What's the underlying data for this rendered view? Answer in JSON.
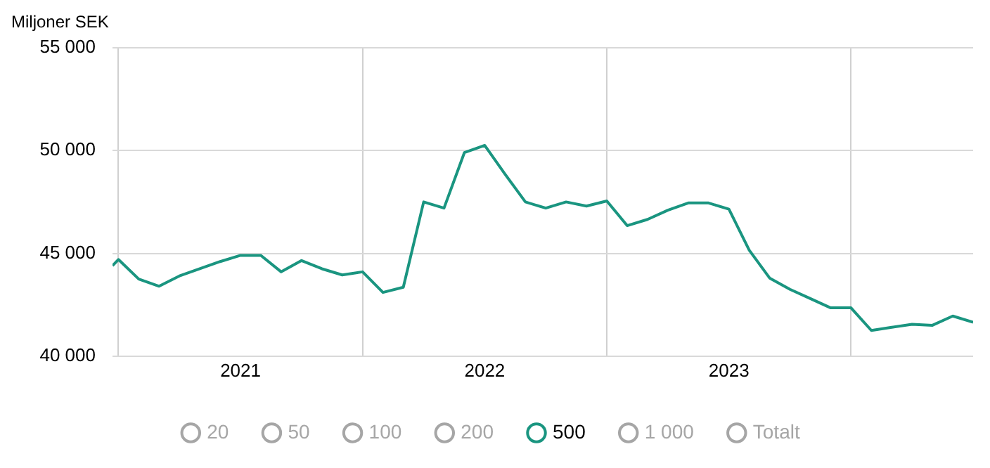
{
  "chart_data": {
    "type": "line",
    "ylabel": "Miljoner SEK",
    "x": [
      "2020-12-23",
      "2021-01",
      "2021-02",
      "2021-03",
      "2021-04",
      "2021-05",
      "2021-06",
      "2021-07",
      "2021-08",
      "2021-09",
      "2021-10",
      "2021-11",
      "2021-12",
      "2022-01",
      "2022-02",
      "2022-03",
      "2022-04",
      "2022-05",
      "2022-06",
      "2022-07",
      "2022-08",
      "2022-09",
      "2022-10",
      "2022-11",
      "2022-12",
      "2023-01",
      "2023-02",
      "2023-03",
      "2023-04",
      "2023-05",
      "2023-06",
      "2023-07",
      "2023-08",
      "2023-09",
      "2023-10",
      "2023-11",
      "2023-12",
      "2024-01",
      "2024-02",
      "2024-03",
      "2024-04",
      "2024-05",
      "2024-06",
      "2024-07"
    ],
    "series": [
      {
        "name": "20",
        "color": "#a6a6a6",
        "values": [
          null,
          null,
          null,
          null,
          null,
          null,
          null,
          null,
          null,
          null,
          null,
          null,
          null,
          null,
          null,
          null,
          null,
          null,
          null,
          null,
          null,
          null,
          null,
          null,
          null,
          null,
          null,
          null,
          null,
          null,
          null,
          null,
          null,
          null,
          null,
          null,
          null,
          null,
          null,
          null,
          null,
          null,
          null,
          null
        ]
      },
      {
        "name": "50",
        "color": "#a6a6a6",
        "values": [
          null,
          null,
          null,
          null,
          null,
          null,
          null,
          null,
          null,
          null,
          null,
          null,
          null,
          null,
          null,
          null,
          null,
          null,
          null,
          null,
          null,
          null,
          null,
          null,
          null,
          null,
          null,
          null,
          null,
          null,
          null,
          null,
          null,
          null,
          null,
          null,
          null,
          null,
          null,
          null,
          null,
          null,
          null,
          null
        ]
      },
      {
        "name": "100",
        "color": "#a6a6a6",
        "values": [
          null,
          null,
          null,
          null,
          null,
          null,
          null,
          null,
          null,
          null,
          null,
          null,
          null,
          null,
          null,
          null,
          null,
          null,
          null,
          null,
          null,
          null,
          null,
          null,
          null,
          null,
          null,
          null,
          null,
          null,
          null,
          null,
          null,
          null,
          null,
          null,
          null,
          null,
          null,
          null,
          null,
          null,
          null,
          null
        ]
      },
      {
        "name": "200",
        "color": "#a6a6a6",
        "values": [
          null,
          null,
          null,
          null,
          null,
          null,
          null,
          null,
          null,
          null,
          null,
          null,
          null,
          null,
          null,
          null,
          null,
          null,
          null,
          null,
          null,
          null,
          null,
          null,
          null,
          null,
          null,
          null,
          null,
          null,
          null,
          null,
          null,
          null,
          null,
          null,
          null,
          null,
          null,
          null,
          null,
          null,
          null,
          null
        ]
      },
      {
        "name": "500",
        "color": "#1a9580",
        "values": [
          44400,
          44700,
          43750,
          43400,
          43900,
          44250,
          44600,
          44900,
          44900,
          44100,
          44650,
          44250,
          43950,
          44100,
          43100,
          43350,
          47500,
          47200,
          49900,
          50250,
          48850,
          47500,
          47200,
          47500,
          47300,
          47550,
          46350,
          46650,
          47100,
          47450,
          47450,
          47150,
          45150,
          43800,
          43250,
          42800,
          42350,
          42350,
          41250,
          41400,
          41550,
          41500,
          41950,
          41650
        ]
      },
      {
        "name": "1 000",
        "color": "#a6a6a6",
        "values": [
          null,
          null,
          null,
          null,
          null,
          null,
          null,
          null,
          null,
          null,
          null,
          null,
          null,
          null,
          null,
          null,
          null,
          null,
          null,
          null,
          null,
          null,
          null,
          null,
          null,
          null,
          null,
          null,
          null,
          null,
          null,
          null,
          null,
          null,
          null,
          null,
          null,
          null,
          null,
          null,
          null,
          null,
          null,
          null
        ]
      },
      {
        "name": "Totalt",
        "color": "#a6a6a6",
        "values": [
          null,
          null,
          null,
          null,
          null,
          null,
          null,
          null,
          null,
          null,
          null,
          null,
          null,
          null,
          null,
          null,
          null,
          null,
          null,
          null,
          null,
          null,
          null,
          null,
          null,
          null,
          null,
          null,
          null,
          null,
          null,
          null,
          null,
          null,
          null,
          null,
          null,
          null,
          null,
          null,
          null,
          null,
          null,
          null
        ]
      }
    ],
    "xlim": [
      "2020-12-23",
      "2024-07"
    ],
    "xticks": [
      {
        "value": "2021-01",
        "label": null
      },
      {
        "value": "2021-07",
        "label": "2021"
      },
      {
        "value": "2022-01",
        "label": null
      },
      {
        "value": "2022-07",
        "label": "2022"
      },
      {
        "value": "2023-01",
        "label": null
      },
      {
        "value": "2023-07",
        "label": "2023"
      },
      {
        "value": "2024-01",
        "label": null
      }
    ],
    "ylim": [
      40000,
      55000
    ],
    "yticks": [
      {
        "value": 40000,
        "label": "40 000"
      },
      {
        "value": 45000,
        "label": "45 000"
      },
      {
        "value": 50000,
        "label": "50 000"
      },
      {
        "value": 55000,
        "label": "55 000"
      }
    ],
    "grid": true,
    "legend": "bottom",
    "marker": "none",
    "line_style": "solid"
  }
}
